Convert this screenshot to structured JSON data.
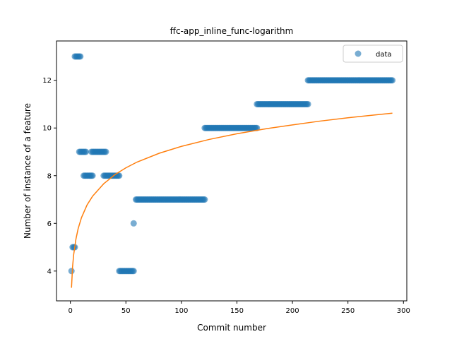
{
  "chart_data": {
    "type": "scatter",
    "title": "ffc-app_inline_func-logarithm",
    "xlabel": "Commit number",
    "ylabel": "Number of instance of a feature",
    "xlim": [
      -12.5,
      303
    ],
    "ylim": [
      2.75,
      13.65
    ],
    "xticks": [
      0,
      50,
      100,
      150,
      200,
      250,
      300
    ],
    "yticks": [
      4,
      6,
      8,
      10,
      12
    ],
    "grid": false,
    "legend": {
      "position": "top-right",
      "entries": [
        "data"
      ]
    },
    "colors": {
      "data": "#1f77b4",
      "fit": "#ff7f0e"
    },
    "series": [
      {
        "name": "data",
        "kind": "points",
        "segments": [
          {
            "x_start": 1,
            "x_end": 1,
            "y": 4
          },
          {
            "x_start": 2,
            "x_end": 4,
            "y": 5
          },
          {
            "x_start": 4,
            "x_end": 9,
            "y": 13
          },
          {
            "x_start": 8,
            "x_end": 14,
            "y": 9
          },
          {
            "x_start": 12,
            "x_end": 20,
            "y": 8
          },
          {
            "x_start": 19,
            "x_end": 32,
            "y": 9
          },
          {
            "x_start": 30,
            "x_end": 44,
            "y": 8
          },
          {
            "x_start": 44,
            "x_end": 57,
            "y": 4
          },
          {
            "x_start": 57,
            "x_end": 57,
            "y": 6
          },
          {
            "x_start": 59,
            "x_end": 121,
            "y": 7
          },
          {
            "x_start": 121,
            "x_end": 168,
            "y": 10
          },
          {
            "x_start": 168,
            "x_end": 214,
            "y": 11
          },
          {
            "x_start": 214,
            "x_end": 290,
            "y": 12
          }
        ]
      },
      {
        "kind": "line",
        "x": [
          1,
          2,
          3,
          5,
          7,
          10,
          15,
          20,
          30,
          40,
          50,
          60,
          80,
          100,
          125,
          150,
          175,
          200,
          225,
          250,
          275,
          290
        ],
        "y": [
          3.3,
          4.2,
          4.7,
          5.34,
          5.78,
          6.24,
          6.77,
          7.14,
          7.66,
          8.04,
          8.33,
          8.57,
          8.94,
          9.23,
          9.52,
          9.76,
          9.96,
          10.13,
          10.29,
          10.43,
          10.55,
          10.62
        ]
      }
    ]
  }
}
